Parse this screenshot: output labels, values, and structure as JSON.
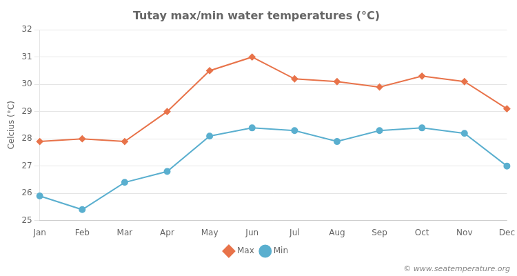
{
  "chart_data": {
    "type": "line",
    "title": "Tutay max/min water temperatures (°C)",
    "ylabel": "Celcius (°C)",
    "categories": [
      "Jan",
      "Feb",
      "Mar",
      "Apr",
      "May",
      "Jun",
      "Jul",
      "Aug",
      "Sep",
      "Oct",
      "Nov",
      "Dec"
    ],
    "series": [
      {
        "name": "Max",
        "color": "#e8734a",
        "marker": "diamond",
        "values": [
          27.9,
          28.0,
          27.9,
          29.0,
          30.5,
          31.0,
          30.2,
          30.1,
          29.9,
          30.3,
          30.1,
          29.1
        ]
      },
      {
        "name": "Min",
        "color": "#5aafcf",
        "marker": "circle",
        "values": [
          25.9,
          25.4,
          26.4,
          26.8,
          28.1,
          28.4,
          28.3,
          27.9,
          28.3,
          28.4,
          28.2,
          27.0
        ]
      }
    ],
    "ylim": [
      25,
      32
    ],
    "yticks": [
      25,
      26,
      27,
      28,
      29,
      30,
      31,
      32
    ],
    "grid": true,
    "legend": "bottom",
    "annotations": [
      "© www.seatemperature.org"
    ]
  }
}
